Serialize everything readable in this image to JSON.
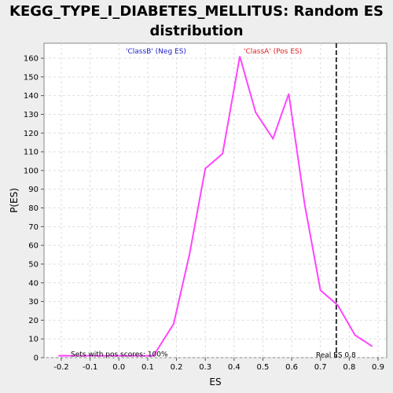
{
  "chart_data": {
    "type": "line",
    "title": "KEGG_TYPE_I_DIABETES_MELLITUS: Random ES distribution",
    "xlabel": "ES",
    "ylabel": "P(ES)",
    "xlim": [
      -0.26,
      0.93
    ],
    "ylim": [
      0,
      168
    ],
    "x_ticks": [
      -0.2,
      -0.1,
      0.0,
      0.1,
      0.2,
      0.3,
      0.4,
      0.5,
      0.6,
      0.7,
      0.8,
      0.9
    ],
    "x_tick_labels": [
      "-0.2",
      "-0.1",
      "0.0",
      "0.1",
      "0.2",
      "0.3",
      "0.4",
      "0.5",
      "0.6",
      "0.7",
      "0.8",
      "0.9"
    ],
    "y_ticks": [
      0,
      10,
      20,
      30,
      40,
      50,
      60,
      70,
      80,
      90,
      100,
      110,
      120,
      130,
      140,
      150,
      160
    ],
    "y_tick_labels": [
      "0",
      "10",
      "20",
      "30",
      "40",
      "50",
      "60",
      "70",
      "80",
      "90",
      "100",
      "110",
      "120",
      "130",
      "140",
      "150",
      "160"
    ],
    "grid": true,
    "series": [
      {
        "color": "#ff44ff",
        "x": [
          -0.21,
          0.12,
          0.19,
          0.245,
          0.3,
          0.36,
          0.42,
          0.475,
          0.535,
          0.59,
          0.645,
          0.7,
          0.76,
          0.82,
          0.88
        ],
        "y": [
          1,
          1,
          18,
          55,
          101,
          109,
          161,
          131,
          117,
          141,
          82,
          36,
          28,
          12,
          6
        ]
      }
    ],
    "real_es": 0.755,
    "annotations": {
      "class_b": "'ClassB' (Neg ES)",
      "class_a": "'ClassA' (Pos ES)",
      "sets_pos": "Sets with pos scores: 100%",
      "real_es": "Real ES 0.8"
    },
    "colors": {
      "class_b": "#2222cc",
      "class_a": "#dd2222",
      "plot_bg": "#ffffff",
      "page_bg": "#eeeeee"
    }
  }
}
